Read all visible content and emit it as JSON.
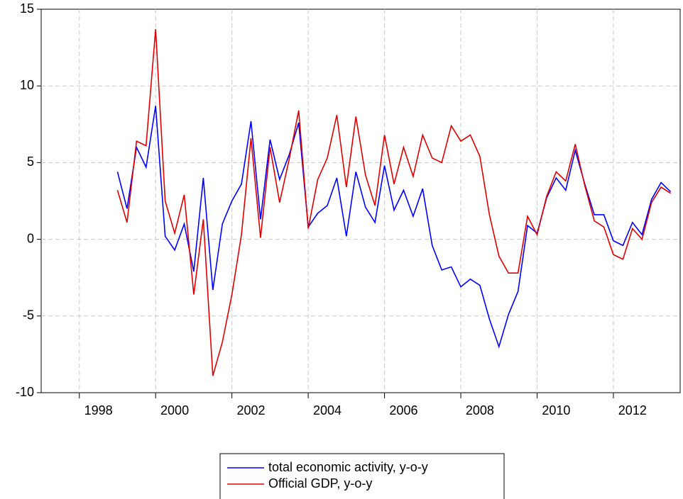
{
  "chart_data": {
    "type": "line",
    "x": [
      1999,
      1999.25,
      1999.5,
      1999.75,
      2000,
      2000.25,
      2000.5,
      2000.75,
      2001,
      2001.25,
      2001.5,
      2001.75,
      2002,
      2002.25,
      2002.5,
      2002.75,
      2003,
      2003.25,
      2003.5,
      2003.75,
      2004,
      2004.25,
      2004.5,
      2004.75,
      2005,
      2005.25,
      2005.5,
      2005.75,
      2006,
      2006.25,
      2006.5,
      2006.75,
      2007,
      2007.25,
      2007.5,
      2007.75,
      2008,
      2008.25,
      2008.5,
      2008.75,
      2009,
      2009.25,
      2009.5,
      2009.75,
      2010,
      2010.25,
      2010.5,
      2010.75,
      2011,
      2011.25,
      2011.5,
      2011.75,
      2012,
      2012.25,
      2012.5,
      2012.75,
      2013,
      2013.25,
      2013.5
    ],
    "series": [
      {
        "name": "total economic activity, y-o-y",
        "color": "#0000ff",
        "values": [
          4.4,
          2.0,
          6.0,
          4.7,
          8.7,
          0.2,
          -0.7,
          1.0,
          -2.1,
          4.0,
          -3.3,
          1.0,
          2.5,
          3.6,
          7.7,
          1.3,
          6.5,
          3.9,
          5.5,
          7.6,
          0.8,
          1.7,
          2.2,
          4.0,
          0.2,
          4.4,
          2.1,
          1.1,
          4.8,
          1.9,
          3.2,
          1.5,
          3.3,
          -0.4,
          -2.0,
          -1.8,
          -3.1,
          -2.6,
          -3.0,
          -5.2,
          -7.0,
          -4.9,
          -3.4,
          0.9,
          0.4,
          2.7,
          4.0,
          3.2,
          5.8,
          3.6,
          1.6,
          1.6,
          -0.1,
          -0.4,
          1.1,
          0.3,
          2.6,
          3.7,
          3.1
        ]
      },
      {
        "name": "Official GDP, y-o-y",
        "color": "#e00000",
        "values": [
          3.2,
          1.1,
          6.4,
          6.1,
          13.7,
          2.5,
          0.4,
          2.9,
          -3.6,
          1.3,
          -8.9,
          -6.7,
          -3.6,
          0.3,
          6.6,
          0.1,
          6.0,
          2.4,
          5.2,
          8.4,
          0.7,
          3.9,
          5.3,
          8.1,
          3.4,
          8.0,
          4.2,
          2.2,
          6.8,
          3.6,
          6.0,
          4.1,
          6.8,
          5.3,
          5.0,
          7.4,
          6.4,
          6.8,
          5.4,
          1.6,
          -1.1,
          -2.2,
          -2.2,
          1.5,
          0.3,
          2.8,
          4.4,
          3.8,
          6.2,
          3.5,
          1.2,
          0.8,
          -1.0,
          -1.3,
          0.7,
          0.0,
          2.4,
          3.4,
          3.0
        ]
      }
    ],
    "xlim": [
      1997,
      2013.75
    ],
    "xticks": [
      1998,
      2000,
      2002,
      2004,
      2006,
      2008,
      2010,
      2012
    ],
    "ylim": [
      -10,
      15
    ],
    "yticks": [
      -10,
      -5,
      0,
      5,
      10,
      15
    ],
    "grid": true,
    "legend": "bottom"
  }
}
